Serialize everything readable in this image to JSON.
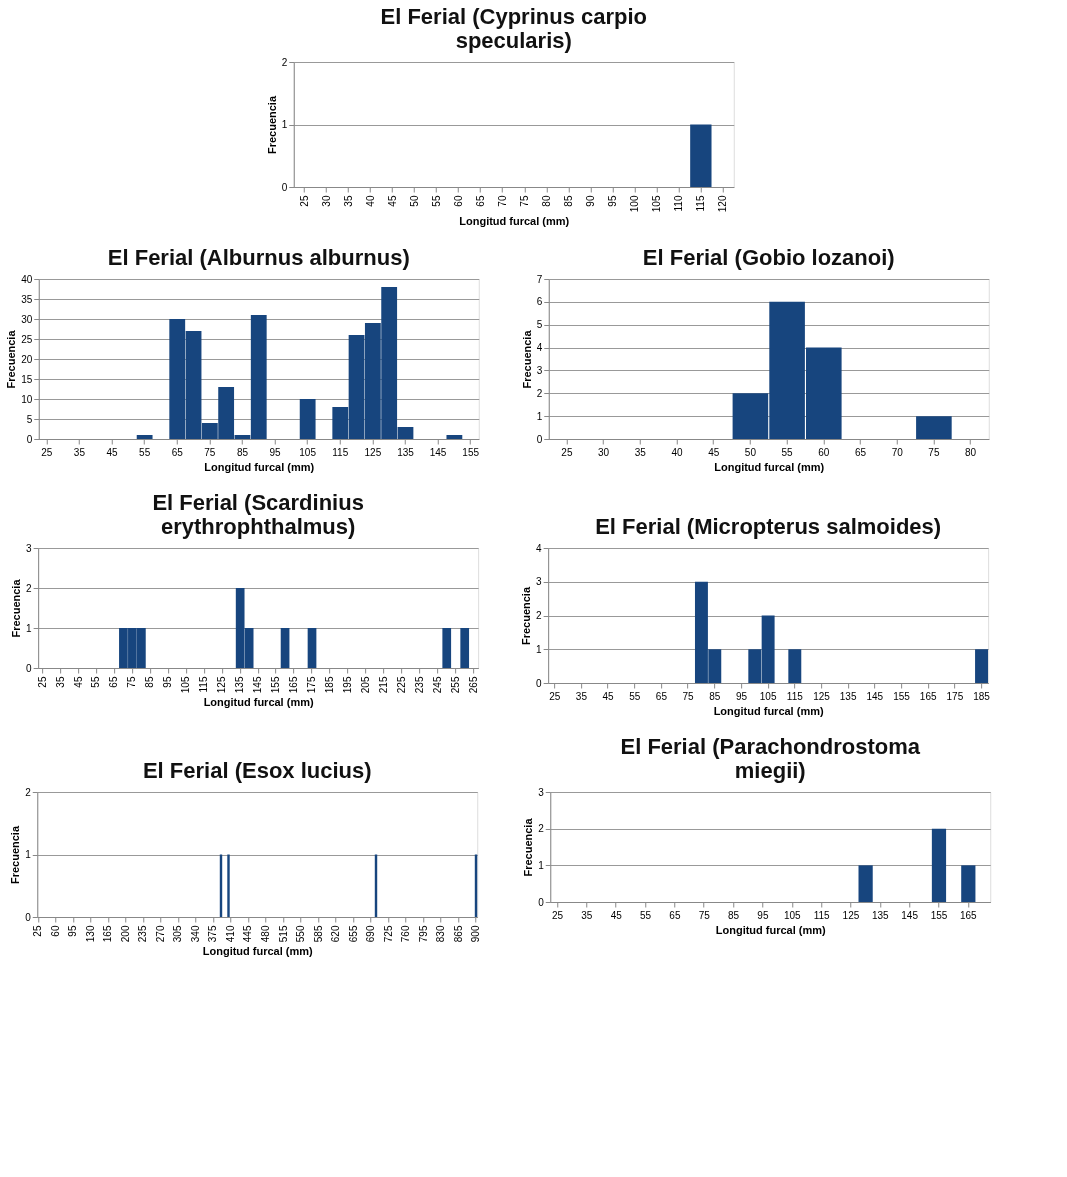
{
  "chart_data": [
    {
      "type": "bar",
      "title": "El Ferial (Cyprinus carpio specularis)",
      "xlabel": "Longitud furcal (mm)",
      "ylabel": "Frecuencia",
      "categories": [
        "25",
        "30",
        "35",
        "40",
        "45",
        "50",
        "55",
        "60",
        "65",
        "70",
        "75",
        "80",
        "85",
        "90",
        "95",
        "100",
        "105",
        "110",
        "115",
        "120"
      ],
      "values": [
        0,
        0,
        0,
        0,
        0,
        0,
        0,
        0,
        0,
        0,
        0,
        0,
        0,
        0,
        0,
        0,
        0,
        0,
        1,
        0
      ],
      "color": "#17457e",
      "ylim": [
        0,
        2
      ],
      "yticks": [
        0,
        1,
        2
      ],
      "grid": "y"
    },
    {
      "type": "bar",
      "title": "El Ferial (Alburnus alburnus)",
      "xlabel": "Longitud furcal (mm)",
      "ylabel": "Frecuencia",
      "categories": [
        "25",
        null,
        "35",
        null,
        "45",
        null,
        "55",
        null,
        "65",
        null,
        "75",
        null,
        "85",
        null,
        "95",
        null,
        "105",
        null,
        "115",
        null,
        "125",
        null,
        "135",
        null,
        "145",
        null,
        "155"
      ],
      "values": [
        0,
        0,
        0,
        0,
        0,
        0,
        1,
        0,
        30,
        27,
        4,
        13,
        1,
        31,
        0,
        0,
        10,
        0,
        8,
        26,
        29,
        38,
        3,
        0,
        0,
        1,
        0
      ],
      "color": "#17457e",
      "ylim": [
        0,
        40
      ],
      "yticks": [
        0,
        5,
        10,
        15,
        20,
        25,
        30,
        35,
        40
      ],
      "grid": "y"
    },
    {
      "type": "bar",
      "title": "El Ferial (Gobio lozanoi)",
      "xlabel": "Longitud furcal (mm)",
      "ylabel": "Frecuencia",
      "categories": [
        "25",
        "30",
        "35",
        "40",
        "45",
        "50",
        "55",
        "60",
        "65",
        "70",
        "75",
        "80"
      ],
      "values": [
        0,
        0,
        0,
        0,
        0,
        2,
        6,
        4,
        0,
        0,
        1,
        0
      ],
      "color": "#17457e",
      "ylim": [
        0,
        7
      ],
      "yticks": [
        0,
        1,
        2,
        3,
        4,
        5,
        6,
        7
      ],
      "grid": "y"
    },
    {
      "type": "bar",
      "title": "El Ferial (Scardinius erythrophthalmus)",
      "xlabel": "Longitud furcal (mm)",
      "ylabel": "Frecuencia",
      "categories": [
        "25",
        null,
        "35",
        null,
        "45",
        null,
        "55",
        null,
        "65",
        null,
        "75",
        null,
        "85",
        null,
        "95",
        null,
        "105",
        null,
        "115",
        null,
        "125",
        null,
        "135",
        null,
        "145",
        null,
        "155",
        null,
        "165",
        null,
        "175",
        null,
        "185",
        null,
        "195",
        null,
        "205",
        null,
        "215",
        null,
        "225",
        null,
        "235",
        null,
        "245",
        null,
        "255",
        null,
        "265"
      ],
      "values": [
        0,
        0,
        0,
        0,
        0,
        0,
        0,
        0,
        0,
        1,
        1,
        1,
        0,
        0,
        0,
        0,
        0,
        0,
        0,
        0,
        0,
        0,
        2,
        1,
        0,
        0,
        0,
        1,
        0,
        0,
        1,
        0,
        0,
        0,
        0,
        0,
        0,
        0,
        0,
        0,
        0,
        0,
        0,
        0,
        0,
        1,
        0,
        1,
        0
      ],
      "color": "#17457e",
      "ylim": [
        0,
        3
      ],
      "yticks": [
        0,
        1,
        2,
        3
      ],
      "grid": "y"
    },
    {
      "type": "bar",
      "title": "El Ferial (Micropterus salmoides)",
      "xlabel": "Longitud furcal (mm)",
      "ylabel": "Frecuencia",
      "categories": [
        "25",
        null,
        "35",
        null,
        "45",
        null,
        "55",
        null,
        "65",
        null,
        "75",
        null,
        "85",
        null,
        "95",
        null,
        "105",
        null,
        "115",
        null,
        "125",
        null,
        "135",
        null,
        "145",
        null,
        "155",
        null,
        "165",
        null,
        "175",
        null,
        "185"
      ],
      "values": [
        0,
        0,
        0,
        0,
        0,
        0,
        0,
        0,
        0,
        0,
        0,
        3,
        1,
        0,
        0,
        1,
        2,
        0,
        1,
        0,
        0,
        0,
        0,
        0,
        0,
        0,
        0,
        0,
        0,
        0,
        0,
        0,
        1
      ],
      "color": "#17457e",
      "ylim": [
        0,
        4
      ],
      "yticks": [
        0,
        1,
        2,
        3,
        4
      ],
      "grid": "y"
    },
    {
      "type": "bar",
      "title": "El Ferial (Esox lucius)",
      "xlabel": "Longitud furcal (mm)",
      "ylabel": "Frecuencia",
      "categories": [
        "25",
        null,
        null,
        null,
        null,
        null,
        null,
        "60",
        null,
        null,
        null,
        null,
        null,
        null,
        "95",
        null,
        null,
        null,
        null,
        null,
        null,
        "130",
        null,
        null,
        null,
        null,
        null,
        null,
        "165",
        null,
        null,
        null,
        null,
        null,
        null,
        "200",
        null,
        null,
        null,
        null,
        null,
        null,
        "235",
        null,
        null,
        null,
        null,
        null,
        null,
        "270",
        null,
        null,
        null,
        null,
        null,
        null,
        "305",
        null,
        null,
        null,
        null,
        null,
        null,
        "340",
        null,
        null,
        null,
        null,
        null,
        null,
        "375",
        null,
        null,
        null,
        null,
        null,
        null,
        "410",
        null,
        null,
        null,
        null,
        null,
        null,
        "445",
        null,
        null,
        null,
        null,
        null,
        null,
        "480",
        null,
        null,
        null,
        null,
        null,
        null,
        "515",
        null,
        null,
        null,
        null,
        null,
        null,
        "550",
        null,
        null,
        null,
        null,
        null,
        null,
        "585",
        null,
        null,
        null,
        null,
        null,
        null,
        "620",
        null,
        null,
        null,
        null,
        null,
        null,
        "655",
        null,
        null,
        null,
        null,
        null,
        null,
        "690",
        null,
        null,
        null,
        null,
        null,
        null,
        "725",
        null,
        null,
        null,
        null,
        null,
        null,
        "760",
        null,
        null,
        null,
        null,
        null,
        null,
        "795",
        null,
        null,
        null,
        null,
        null,
        null,
        "830",
        null,
        null,
        null,
        null,
        null,
        null,
        "865",
        null,
        null,
        null,
        null,
        null,
        null,
        "900"
      ],
      "values": [
        0,
        0,
        0,
        0,
        0,
        0,
        0,
        0,
        0,
        0,
        0,
        0,
        0,
        0,
        0,
        0,
        0,
        0,
        0,
        0,
        0,
        0,
        0,
        0,
        0,
        0,
        0,
        0,
        0,
        0,
        0,
        0,
        0,
        0,
        0,
        0,
        0,
        0,
        0,
        0,
        0,
        0,
        0,
        0,
        0,
        0,
        0,
        0,
        0,
        0,
        0,
        0,
        0,
        0,
        0,
        0,
        0,
        0,
        0,
        0,
        0,
        0,
        0,
        0,
        0,
        0,
        0,
        0,
        0,
        0,
        0,
        0,
        0,
        1,
        0,
        0,
        1,
        0,
        0,
        0,
        0,
        0,
        0,
        0,
        0,
        0,
        0,
        0,
        0,
        0,
        0,
        0,
        0,
        0,
        0,
        0,
        0,
        0,
        0,
        0,
        0,
        0,
        0,
        0,
        0,
        0,
        0,
        0,
        0,
        0,
        0,
        0,
        0,
        0,
        0,
        0,
        0,
        0,
        0,
        0,
        0,
        0,
        0,
        0,
        0,
        0,
        0,
        0,
        0,
        0,
        0,
        0,
        0,
        0,
        0,
        1,
        0,
        0,
        0,
        0,
        0,
        0,
        0,
        0,
        0,
        0,
        0,
        0,
        0,
        0,
        0,
        0,
        0,
        0,
        0,
        0,
        0,
        0,
        0,
        0,
        0,
        0,
        0,
        0,
        0,
        0,
        0,
        0,
        0,
        0,
        0,
        0,
        0,
        0,
        0,
        1
      ],
      "color": "#17457e",
      "ylim": [
        0,
        2
      ],
      "yticks": [
        0,
        1,
        2
      ],
      "grid": "y"
    },
    {
      "type": "bar",
      "title": "El Ferial (Parachondrostoma miegii)",
      "xlabel": "Longitud furcal (mm)",
      "ylabel": "Frecuencia",
      "categories": [
        "25",
        null,
        "35",
        null,
        "45",
        null,
        "55",
        null,
        "65",
        null,
        "75",
        null,
        "85",
        null,
        "95",
        null,
        "105",
        null,
        "115",
        null,
        "125",
        null,
        "135",
        null,
        "145",
        null,
        "155",
        null,
        "165",
        null
      ],
      "values": [
        0,
        0,
        0,
        0,
        0,
        0,
        0,
        0,
        0,
        0,
        0,
        0,
        0,
        0,
        0,
        0,
        0,
        0,
        0,
        0,
        0,
        1,
        0,
        0,
        0,
        0,
        2,
        0,
        1,
        0
      ],
      "color": "#17457e",
      "ylim": [
        0,
        3
      ],
      "yticks": [
        0,
        1,
        2,
        3
      ],
      "grid": "y"
    }
  ]
}
